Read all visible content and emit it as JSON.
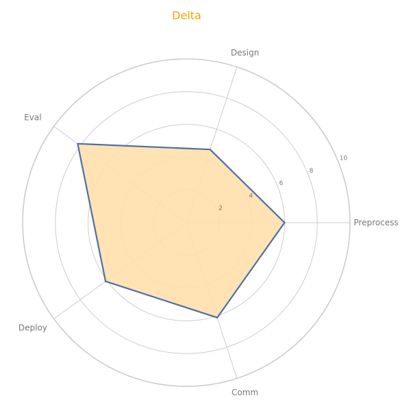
{
  "chart_data": {
    "type": "radar",
    "title": "Delta",
    "axes": [
      "Preprocess",
      "Design",
      "Eval",
      "Deploy",
      "Comm"
    ],
    "series": [
      {
        "values": [
          6,
          4.7,
          8.2,
          6.1,
          6.1
        ]
      }
    ],
    "r_ticks": [
      2,
      4,
      6,
      8,
      10
    ],
    "r_range": [
      0,
      10
    ],
    "grid": true,
    "colors": {
      "title": "#f5a300",
      "line": "#4c6ea8",
      "fill": "#ffe0ac",
      "grid": "#cccccc",
      "label": "#777777"
    }
  }
}
